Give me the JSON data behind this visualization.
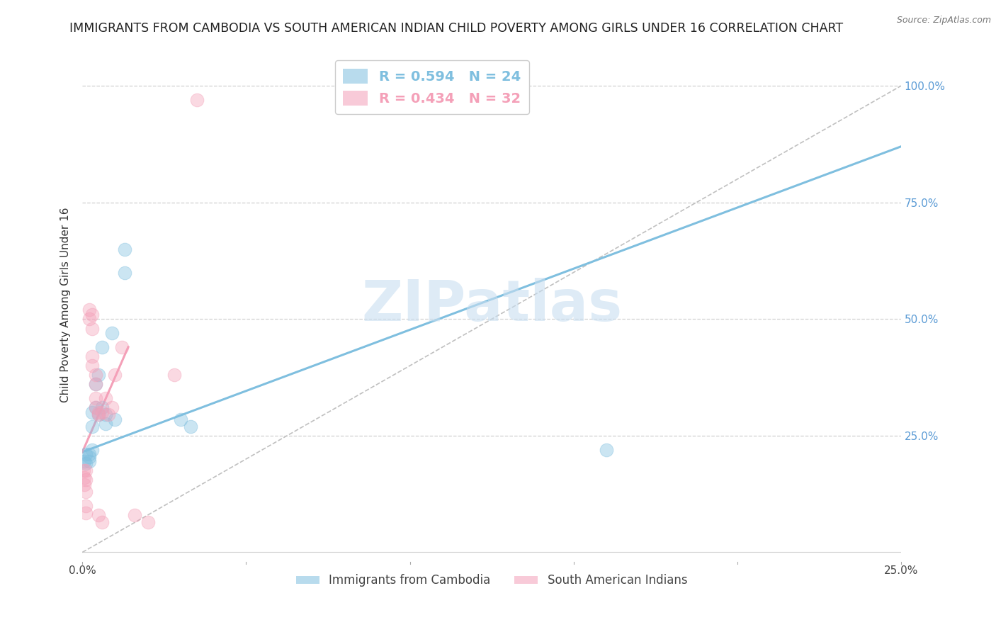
{
  "title": "IMMIGRANTS FROM CAMBODIA VS SOUTH AMERICAN INDIAN CHILD POVERTY AMONG GIRLS UNDER 16 CORRELATION CHART",
  "source": "Source: ZipAtlas.com",
  "ylabel": "Child Poverty Among Girls Under 16",
  "xlim": [
    0.0,
    0.25
  ],
  "ylim": [
    -0.02,
    1.08
  ],
  "yticks": [
    0.0,
    0.25,
    0.5,
    0.75,
    1.0
  ],
  "ytick_labels": [
    "",
    "25.0%",
    "50.0%",
    "75.0%",
    "100.0%"
  ],
  "xticks": [
    0.0,
    0.05,
    0.1,
    0.15,
    0.2,
    0.25
  ],
  "xtick_labels": [
    "0.0%",
    "",
    "",
    "",
    "",
    "25.0%"
  ],
  "watermark": "ZIPatlas",
  "series": [
    {
      "name": "Immigrants from Cambodia",
      "color": "#7fbfdf",
      "R": 0.594,
      "N": 24,
      "points": [
        [
          0.0005,
          0.195
        ],
        [
          0.001,
          0.21
        ],
        [
          0.001,
          0.19
        ],
        [
          0.002,
          0.21
        ],
        [
          0.002,
          0.195
        ],
        [
          0.002,
          0.205
        ],
        [
          0.003,
          0.27
        ],
        [
          0.003,
          0.22
        ],
        [
          0.003,
          0.3
        ],
        [
          0.004,
          0.31
        ],
        [
          0.004,
          0.36
        ],
        [
          0.005,
          0.38
        ],
        [
          0.005,
          0.295
        ],
        [
          0.006,
          0.44
        ],
        [
          0.006,
          0.31
        ],
        [
          0.007,
          0.295
        ],
        [
          0.007,
          0.275
        ],
        [
          0.009,
          0.47
        ],
        [
          0.01,
          0.285
        ],
        [
          0.013,
          0.6
        ],
        [
          0.013,
          0.65
        ],
        [
          0.03,
          0.285
        ],
        [
          0.033,
          0.27
        ],
        [
          0.16,
          0.22
        ]
      ],
      "trendline": {
        "x0": 0.0,
        "y0": 0.215,
        "x1": 0.25,
        "y1": 0.87
      }
    },
    {
      "name": "South American Indians",
      "color": "#f4a0b8",
      "R": 0.434,
      "N": 32,
      "points": [
        [
          0.0003,
          0.175
        ],
        [
          0.0005,
          0.16
        ],
        [
          0.0005,
          0.145
        ],
        [
          0.001,
          0.175
        ],
        [
          0.001,
          0.155
        ],
        [
          0.001,
          0.13
        ],
        [
          0.001,
          0.1
        ],
        [
          0.001,
          0.085
        ],
        [
          0.002,
          0.5
        ],
        [
          0.002,
          0.52
        ],
        [
          0.003,
          0.48
        ],
        [
          0.003,
          0.51
        ],
        [
          0.003,
          0.42
        ],
        [
          0.003,
          0.4
        ],
        [
          0.004,
          0.38
        ],
        [
          0.004,
          0.36
        ],
        [
          0.004,
          0.33
        ],
        [
          0.004,
          0.31
        ],
        [
          0.005,
          0.3
        ],
        [
          0.005,
          0.295
        ],
        [
          0.005,
          0.08
        ],
        [
          0.006,
          0.065
        ],
        [
          0.006,
          0.3
        ],
        [
          0.007,
          0.33
        ],
        [
          0.008,
          0.295
        ],
        [
          0.009,
          0.31
        ],
        [
          0.01,
          0.38
        ],
        [
          0.012,
          0.44
        ],
        [
          0.016,
          0.08
        ],
        [
          0.02,
          0.065
        ],
        [
          0.028,
          0.38
        ],
        [
          0.035,
          0.97
        ]
      ],
      "trendline": {
        "x0": 0.0,
        "y0": 0.215,
        "x1": 0.014,
        "y1": 0.44
      }
    }
  ],
  "diagonal_line": {
    "x0": 0.0,
    "y0": 0.0,
    "x1": 0.25,
    "y1": 1.0
  },
  "background_color": "#ffffff",
  "grid_color": "#d0d0d0",
  "title_fontsize": 12.5,
  "label_fontsize": 11,
  "tick_fontsize": 11,
  "tick_color_y": "#5b9bd5",
  "scatter_size": 180
}
